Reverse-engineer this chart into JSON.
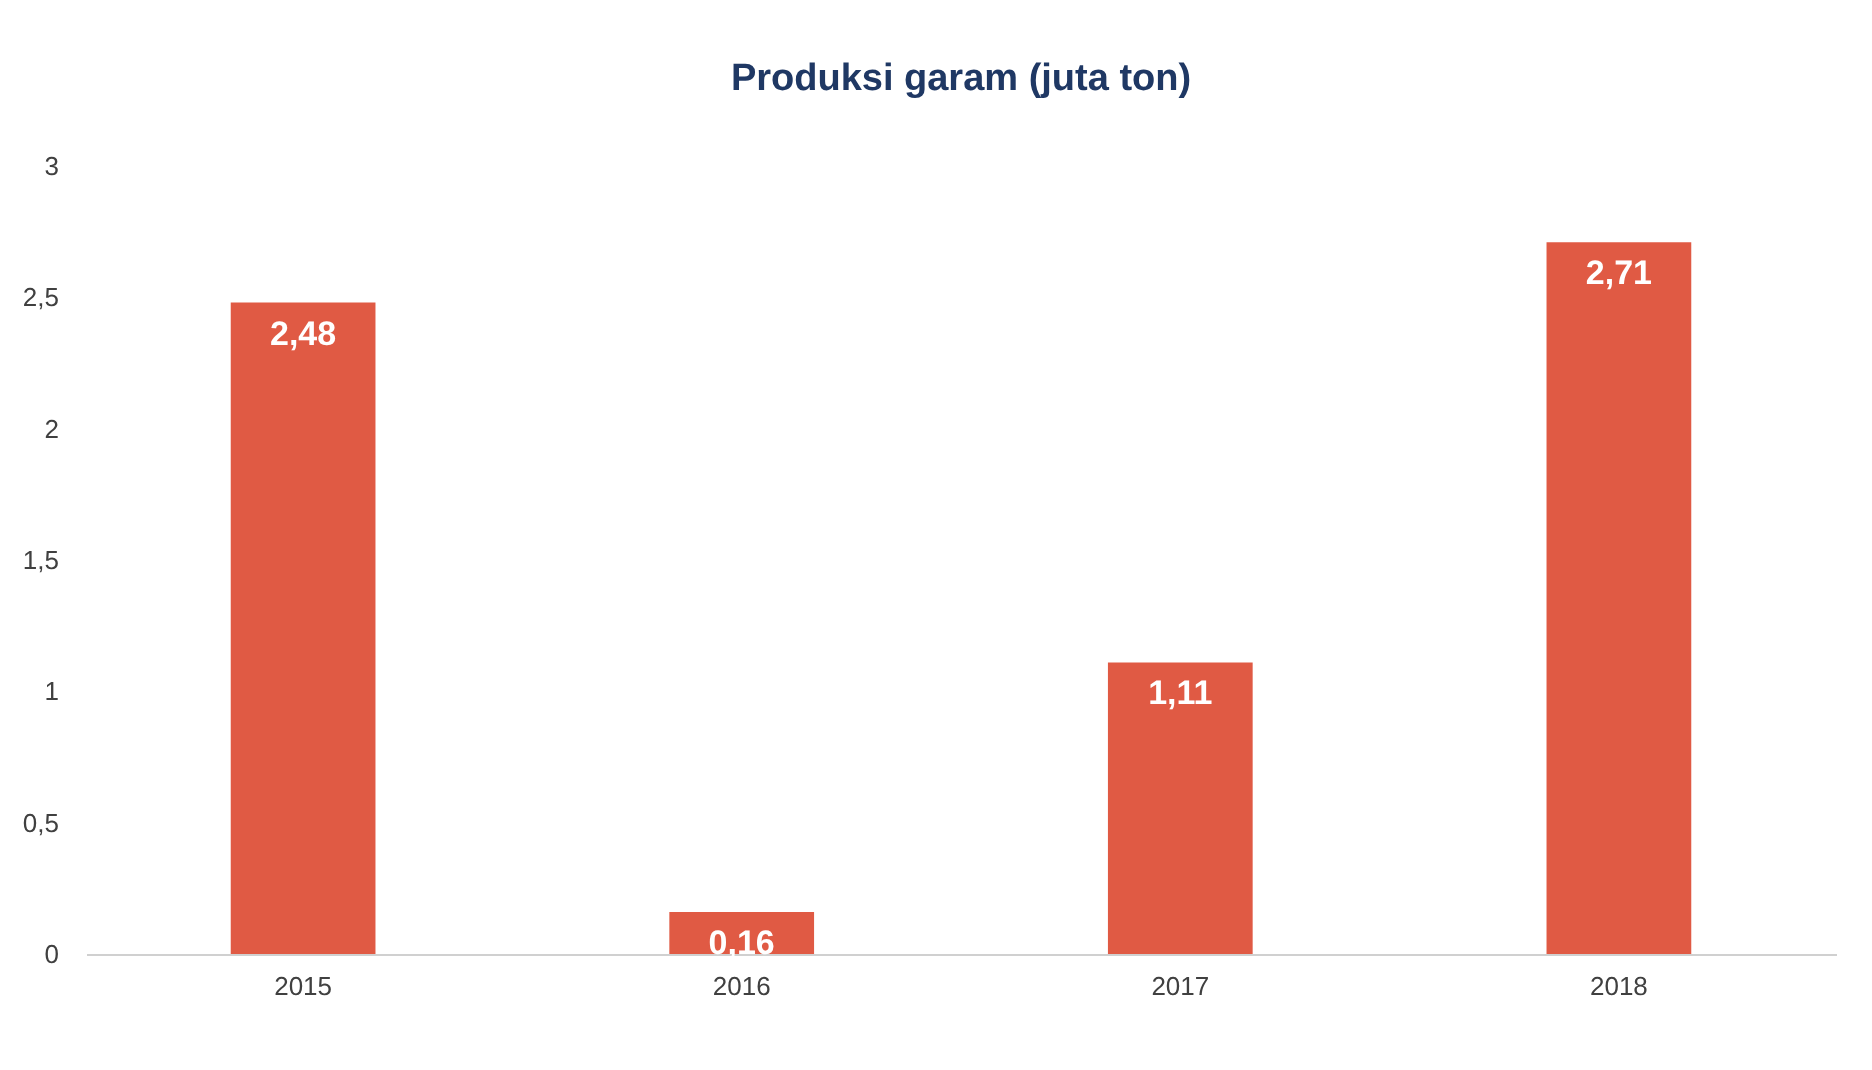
{
  "chart_data": {
    "type": "bar",
    "title": "Produksi garam (juta ton)",
    "categories": [
      "2015",
      "2016",
      "2017",
      "2018"
    ],
    "values": [
      2.48,
      0.16,
      1.11,
      2.71
    ],
    "value_labels": [
      "2,48",
      "0,16",
      "1,11",
      "2,71"
    ],
    "color": "#e05a44",
    "ylim": [
      0,
      3
    ],
    "yticks": [
      0,
      {
        "value": 0.5,
        "label": "0,5"
      },
      1,
      {
        "value": 1.5,
        "label": "1,5"
      },
      2,
      {
        "value": 2.5,
        "label": "2,5"
      },
      3
    ],
    "grid": false
  }
}
